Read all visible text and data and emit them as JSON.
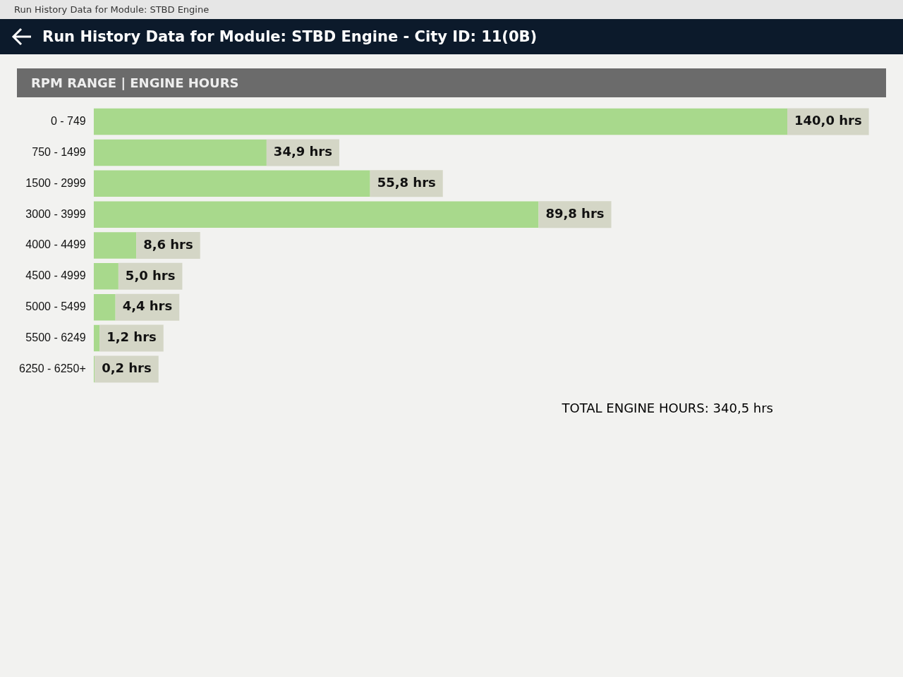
{
  "chart_data": {
    "type": "bar",
    "orientation": "horizontal",
    "title": "Run History Data for Module: STBD Engine - City ID: 11(0B)",
    "subtitle": "RPM RANGE | ENGINE HOURS",
    "categories": [
      "0 - 749",
      "750 - 1499",
      "1500 - 2999",
      "3000 - 3999",
      "4000 - 4499",
      "4500 - 4999",
      "5000 - 5499",
      "5500 - 6249",
      "6250 - 6250+"
    ],
    "values": [
      140.0,
      34.9,
      55.8,
      89.8,
      8.6,
      5.0,
      4.4,
      1.2,
      0.2
    ],
    "value_labels": [
      "140,0 hrs",
      "34,9 hrs",
      "55,8 hrs",
      "89,8 hrs",
      "8,6 hrs",
      "5,0 hrs",
      "4,4 hrs",
      "1,2 hrs",
      "0,2 hrs"
    ],
    "color": "#a8d98c",
    "tick_labels": "y",
    "legend": false,
    "annotations": [
      "Run History Data for Module: STBD Engine",
      "TOTAL ENGINE HOURS: 340,5 hrs"
    ]
  }
}
